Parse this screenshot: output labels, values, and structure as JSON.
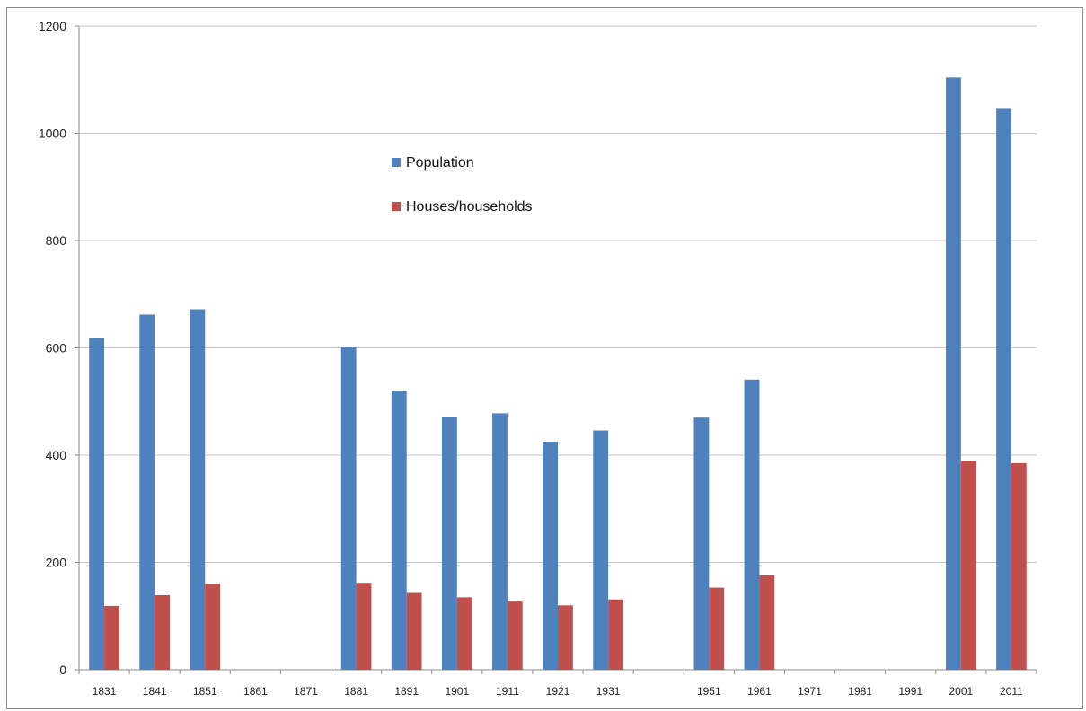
{
  "chart_data": {
    "type": "bar",
    "title": "",
    "xlabel": "",
    "ylabel": "",
    "ylim": [
      0,
      1200
    ],
    "yticks": [
      0,
      200,
      400,
      600,
      800,
      1000,
      1200
    ],
    "grid": true,
    "legend_position": "top-center",
    "categories": [
      "1831",
      "1841",
      "1851",
      "1861",
      "1871",
      "1881",
      "1891",
      "1901",
      "1911",
      "1921",
      "1931",
      "",
      "1951",
      "1961",
      "1971",
      "1981",
      "1991",
      "2001",
      "2011"
    ],
    "series": [
      {
        "name": "Population",
        "color": "#4F81BD",
        "values": [
          619,
          662,
          672,
          null,
          null,
          602,
          520,
          472,
          478,
          425,
          446,
          null,
          470,
          541,
          null,
          null,
          null,
          1104,
          1047
        ]
      },
      {
        "name": "Houses/households",
        "color": "#C0504D",
        "values": [
          119,
          139,
          160,
          null,
          null,
          162,
          143,
          135,
          127,
          120,
          131,
          null,
          153,
          176,
          null,
          null,
          null,
          389,
          385
        ]
      }
    ]
  }
}
